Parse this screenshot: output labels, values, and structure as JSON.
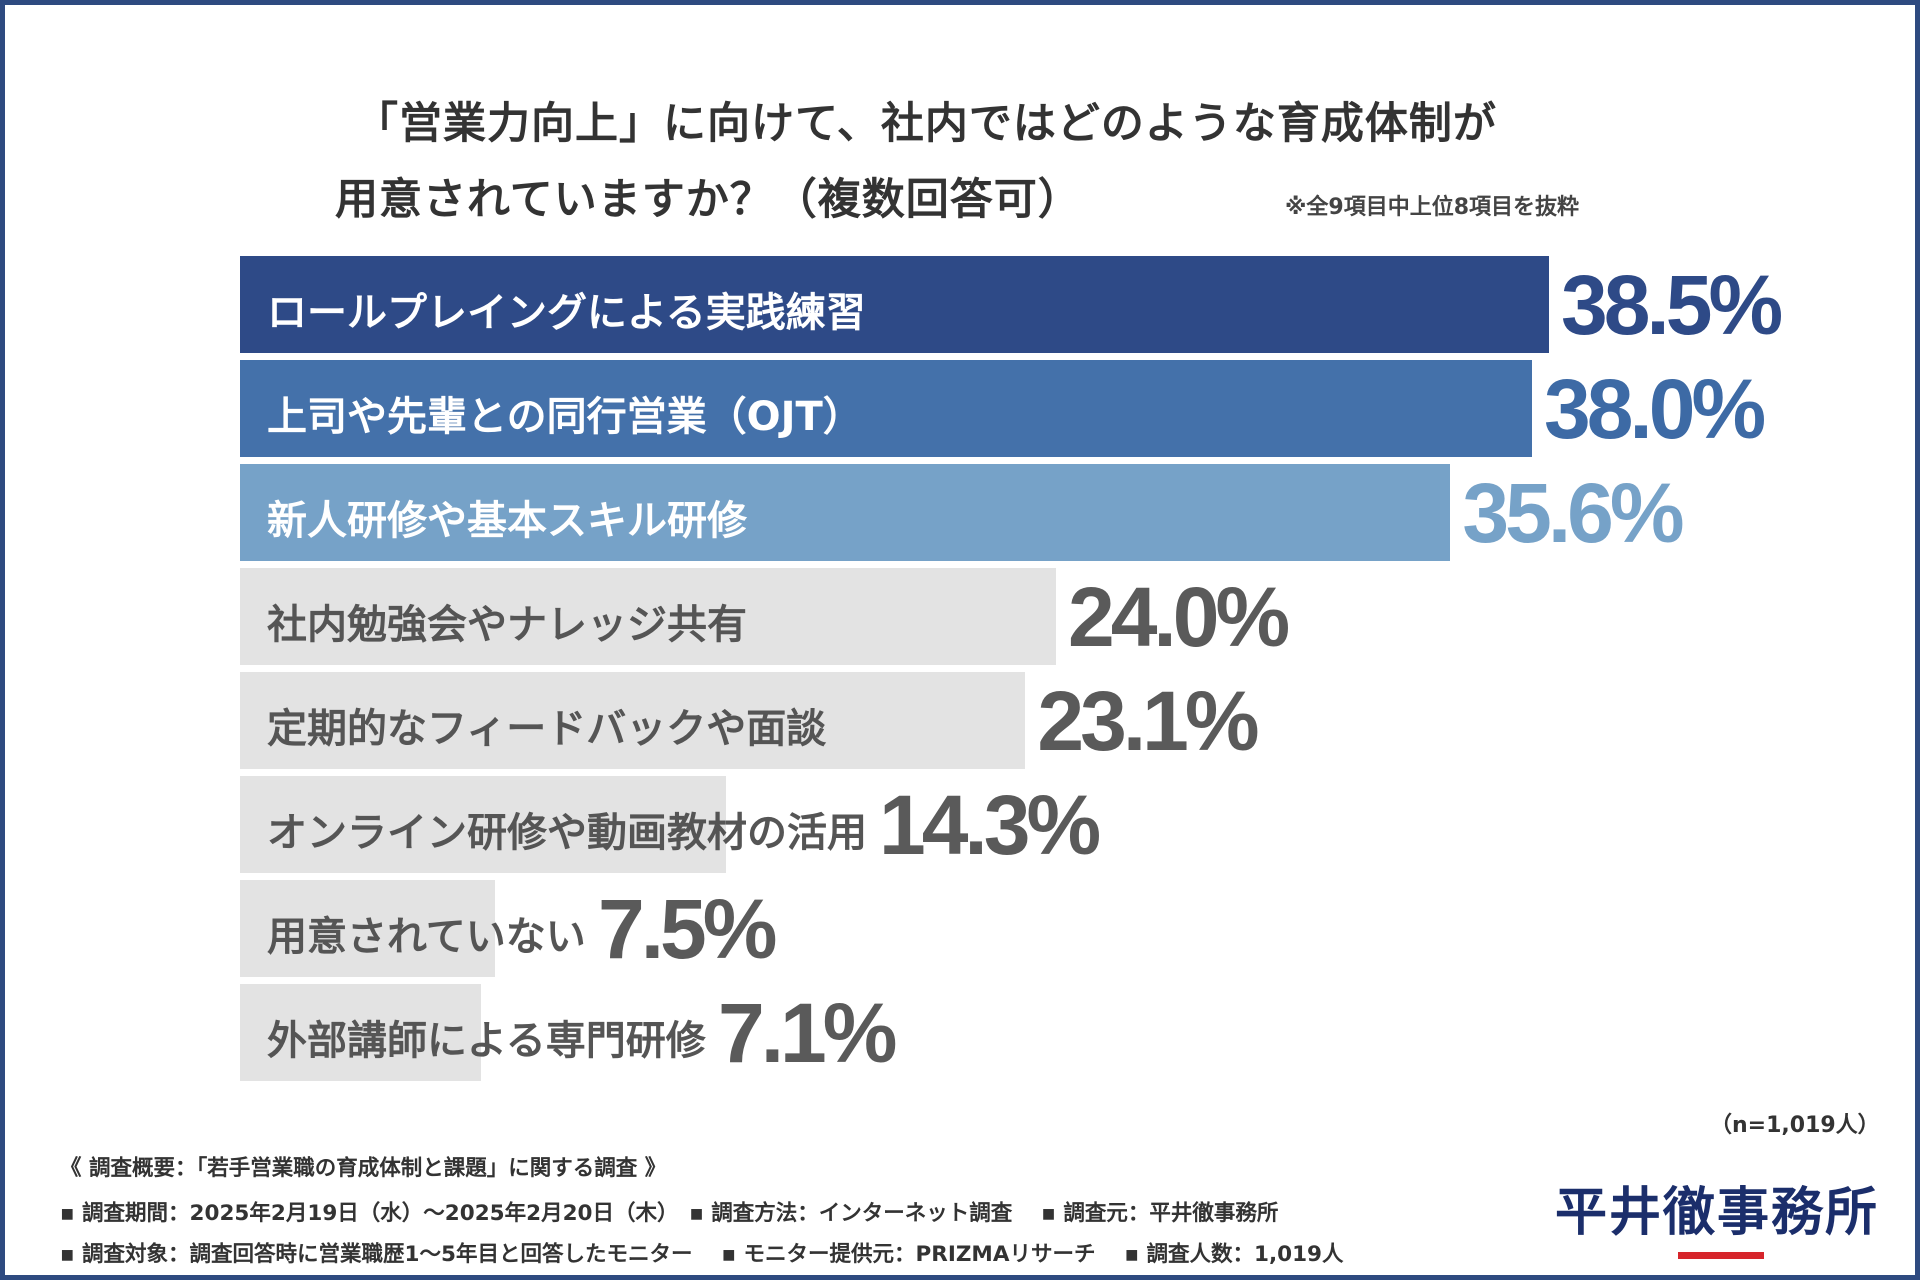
{
  "chart_data": {
    "type": "bar",
    "orientation": "horizontal",
    "title_line1": "「営業力向上」に向けて、社内ではどのような育成体制が",
    "title_line2": "用意されていますか？（複数回答可）",
    "note": "※全9項目中上位8項目を抜粋",
    "sample_size": "（n=1,019人）",
    "unit": "%",
    "xlim": [
      0,
      40
    ],
    "categories": [
      "ロールプレイングによる実践練習",
      "上司や先輩との同行営業（OJT）",
      "新人研修や基本スキル研修",
      "社内勉強会やナレッジ共有",
      "定期的なフィードバックや面談",
      "オンライン研修や動画教材の活用",
      "用意されていない",
      "外部講師による専門研修"
    ],
    "values": [
      38.5,
      38.0,
      35.6,
      24.0,
      23.1,
      14.3,
      7.5,
      7.1
    ],
    "value_labels": [
      "38.5%",
      "38.0%",
      "35.6%",
      "24.0%",
      "23.1%",
      "14.3%",
      "7.5%",
      "7.1%"
    ],
    "bar_colors": [
      "#2e4a87",
      "#4471aa",
      "#76a2c8",
      "#e3e3e3",
      "#e3e3e3",
      "#e3e3e3",
      "#e3e3e3",
      "#e3e3e3"
    ],
    "label_colors": [
      "#ffffff",
      "#ffffff",
      "#ffffff",
      "#555555",
      "#555555",
      "#555555",
      "#555555",
      "#555555"
    ],
    "value_colors": [
      "#2e4a87",
      "#3d6aa5",
      "#76a2c8",
      "#5a5a5a",
      "#5a5a5a",
      "#5a5a5a",
      "#5a5a5a",
      "#5a5a5a"
    ]
  },
  "survey": {
    "title": "《 調査概要：「若手営業職の育成体制と課題」に関する調査 》",
    "line1": "▪ 調査期間：2025年2月19日（水）～2025年2月20日（木）　▪ 調査方法：インターネット調査　 ▪ 調査元：平井徹事務所",
    "line2": "▪ 調査対象：調査回答時に営業職歴1～5年目と回答したモニター　 ▪ モニター提供元：PRIZMAリサーチ　 ▪ 調査人数：1,019人"
  },
  "brand": {
    "logo_text": "平井徹事務所",
    "accent_color": "#d6252b",
    "logo_color": "#1b2e6b"
  }
}
